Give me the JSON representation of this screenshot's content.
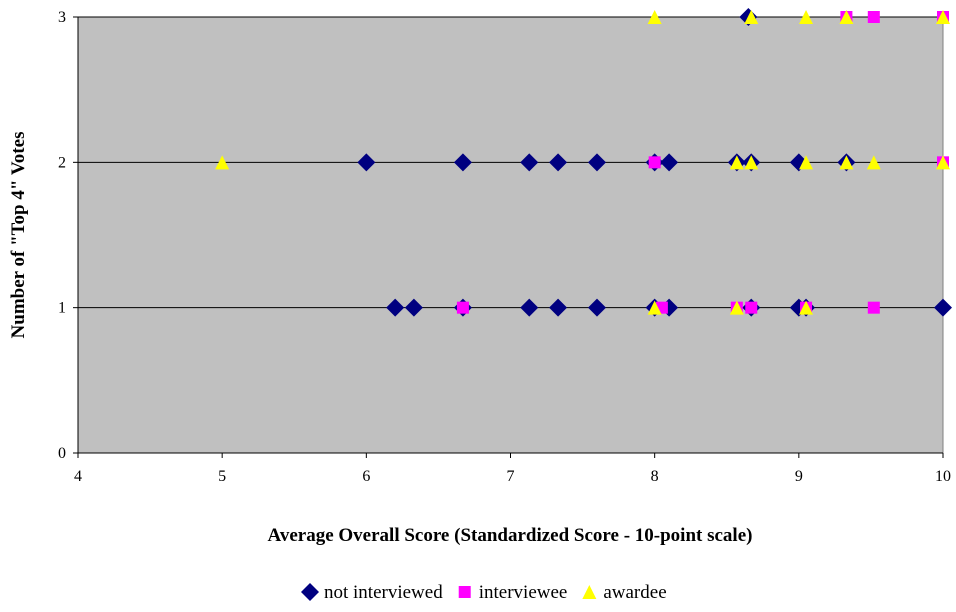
{
  "chart_data": {
    "type": "scatter",
    "title": "",
    "xlabel": "Average Overall Score (Standardized Score - 10-point scale)",
    "ylabel": "Number of \"Top 4\" Votes",
    "xlim": [
      4,
      10
    ],
    "ylim": [
      0,
      3
    ],
    "x_ticks": [
      "4",
      "5",
      "6",
      "7",
      "8",
      "9",
      "10"
    ],
    "y_ticks": [
      "0",
      "1",
      "2",
      "3"
    ],
    "grid": "horizontal",
    "plot_background": "#c0c0c0",
    "legend_position": "bottom",
    "series": [
      {
        "name": "not interviewed",
        "marker": "diamond",
        "color": "#000080",
        "points": [
          [
            8.65,
            3
          ],
          [
            6.0,
            2
          ],
          [
            6.67,
            2
          ],
          [
            7.13,
            2
          ],
          [
            7.33,
            2
          ],
          [
            7.6,
            2
          ],
          [
            8.0,
            2
          ],
          [
            8.1,
            2
          ],
          [
            8.57,
            2
          ],
          [
            8.67,
            2
          ],
          [
            9.0,
            2
          ],
          [
            9.33,
            2
          ],
          [
            6.2,
            1
          ],
          [
            6.33,
            1
          ],
          [
            6.67,
            1
          ],
          [
            7.13,
            1
          ],
          [
            7.33,
            1
          ],
          [
            7.6,
            1
          ],
          [
            8.0,
            1
          ],
          [
            8.1,
            1
          ],
          [
            8.67,
            1
          ],
          [
            9.0,
            1
          ],
          [
            9.05,
            1
          ],
          [
            10.0,
            1
          ]
        ]
      },
      {
        "name": "interviewee",
        "marker": "square",
        "color": "#ff00ff",
        "points": [
          [
            9.33,
            3
          ],
          [
            9.52,
            3
          ],
          [
            10.0,
            3
          ],
          [
            8.0,
            2
          ],
          [
            10.0,
            2
          ],
          [
            6.67,
            1
          ],
          [
            8.05,
            1
          ],
          [
            8.57,
            1
          ],
          [
            8.67,
            1
          ],
          [
            9.05,
            1
          ],
          [
            9.52,
            1
          ]
        ]
      },
      {
        "name": "awardee",
        "marker": "triangle",
        "color": "#ffff00",
        "points": [
          [
            8.0,
            3
          ],
          [
            8.67,
            3
          ],
          [
            9.05,
            3
          ],
          [
            9.33,
            3
          ],
          [
            10.0,
            3
          ],
          [
            5.0,
            2
          ],
          [
            8.57,
            2
          ],
          [
            8.67,
            2
          ],
          [
            9.05,
            2
          ],
          [
            9.33,
            2
          ],
          [
            9.52,
            2
          ],
          [
            10.0,
            2
          ],
          [
            8.0,
            1
          ],
          [
            8.57,
            1
          ],
          [
            9.05,
            1
          ]
        ]
      }
    ]
  }
}
